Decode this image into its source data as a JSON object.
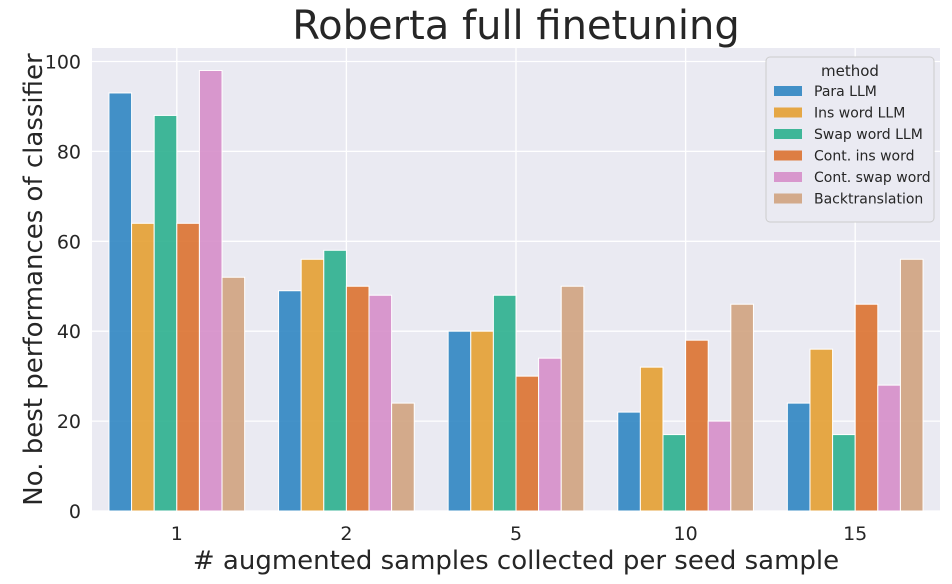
{
  "chart_data": {
    "type": "bar",
    "title": "Roberta full finetuning",
    "xlabel": "# augmented samples collected per seed sample",
    "ylabel": "No. best performances of classifier",
    "categories": [
      "1",
      "2",
      "5",
      "10",
      "15"
    ],
    "ylim": [
      0,
      103
    ],
    "yticks": [
      0,
      20,
      40,
      60,
      80,
      100
    ],
    "grid": true,
    "legend": {
      "title": "method",
      "placement": "top-right"
    },
    "series": [
      {
        "name": "Para LLM",
        "color": "#2a83c0",
        "values": [
          93,
          49,
          40,
          22,
          24
        ]
      },
      {
        "name": "Ins word LLM",
        "color": "#e49d2c",
        "values": [
          64,
          56,
          40,
          32,
          36
        ]
      },
      {
        "name": "Swap word LLM",
        "color": "#27ae8b",
        "values": [
          88,
          58,
          48,
          17,
          17
        ]
      },
      {
        "name": "Cont. ins word",
        "color": "#db6e2a",
        "values": [
          64,
          50,
          30,
          38,
          46
        ]
      },
      {
        "name": "Cont. swap word",
        "color": "#d58bc7",
        "values": [
          98,
          48,
          34,
          20,
          28
        ]
      },
      {
        "name": "Backtranslation",
        "color": "#cfa07c",
        "values": [
          52,
          24,
          50,
          46,
          56
        ]
      }
    ]
  },
  "colors": {
    "plot_background": "#eaeaf2",
    "grid": "#ffffff",
    "text": "#262626"
  }
}
